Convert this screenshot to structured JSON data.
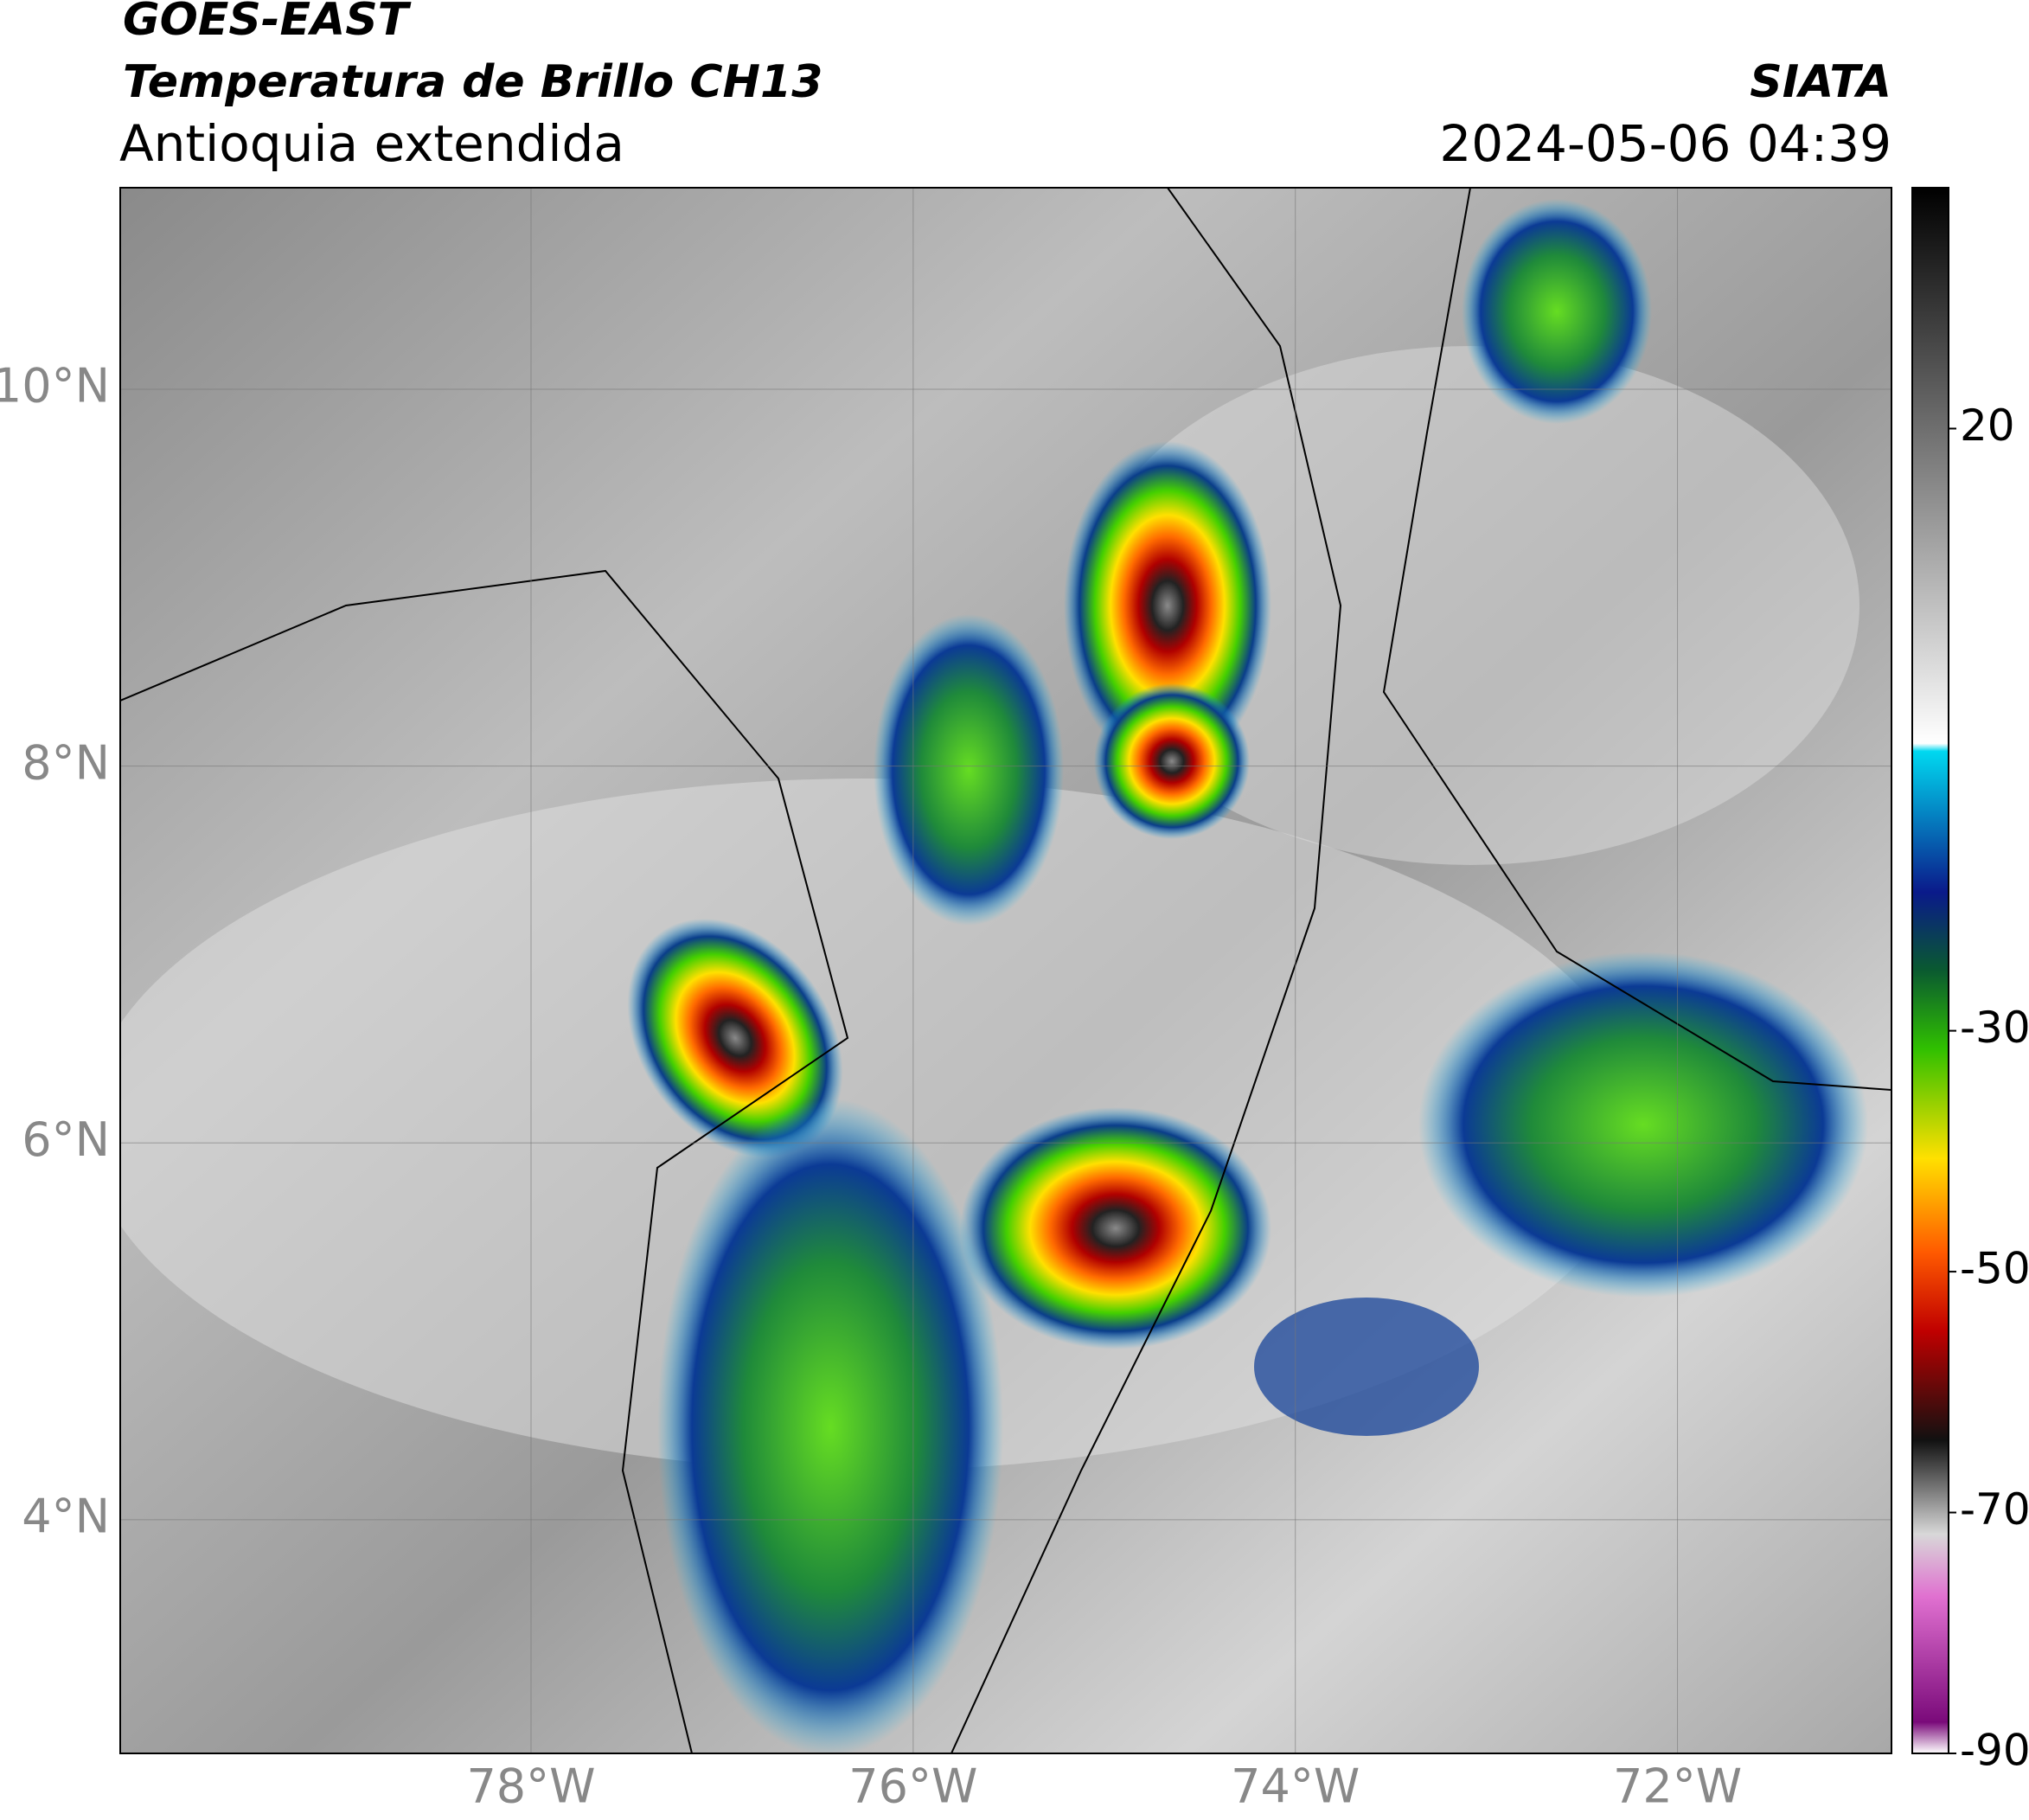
{
  "header": {
    "satellite": "GOES-EAST",
    "product": "Temperatura de Brillo CH13",
    "region": "Antioquia extendida",
    "source": "SIATA",
    "datetime": "2024-05-06 04:39"
  },
  "map": {
    "lonlim": [
      -80.15,
      -70.88
    ],
    "latlim": [
      2.76,
      11.07
    ],
    "lat_ticks": [
      {
        "value": 10,
        "label": "10°N"
      },
      {
        "value": 8,
        "label": "8°N"
      },
      {
        "value": 6,
        "label": "6°N"
      },
      {
        "value": 4,
        "label": "4°N"
      }
    ],
    "lon_ticks": [
      {
        "value": -78,
        "label": "78°W"
      },
      {
        "value": -76,
        "label": "76°W"
      },
      {
        "value": -74,
        "label": "74°W"
      },
      {
        "value": -72,
        "label": "72°W"
      }
    ]
  },
  "colorbar": {
    "lim": [
      -90,
      40
    ],
    "ticks": [
      20,
      -30,
      -50,
      -70,
      -90
    ]
  }
}
